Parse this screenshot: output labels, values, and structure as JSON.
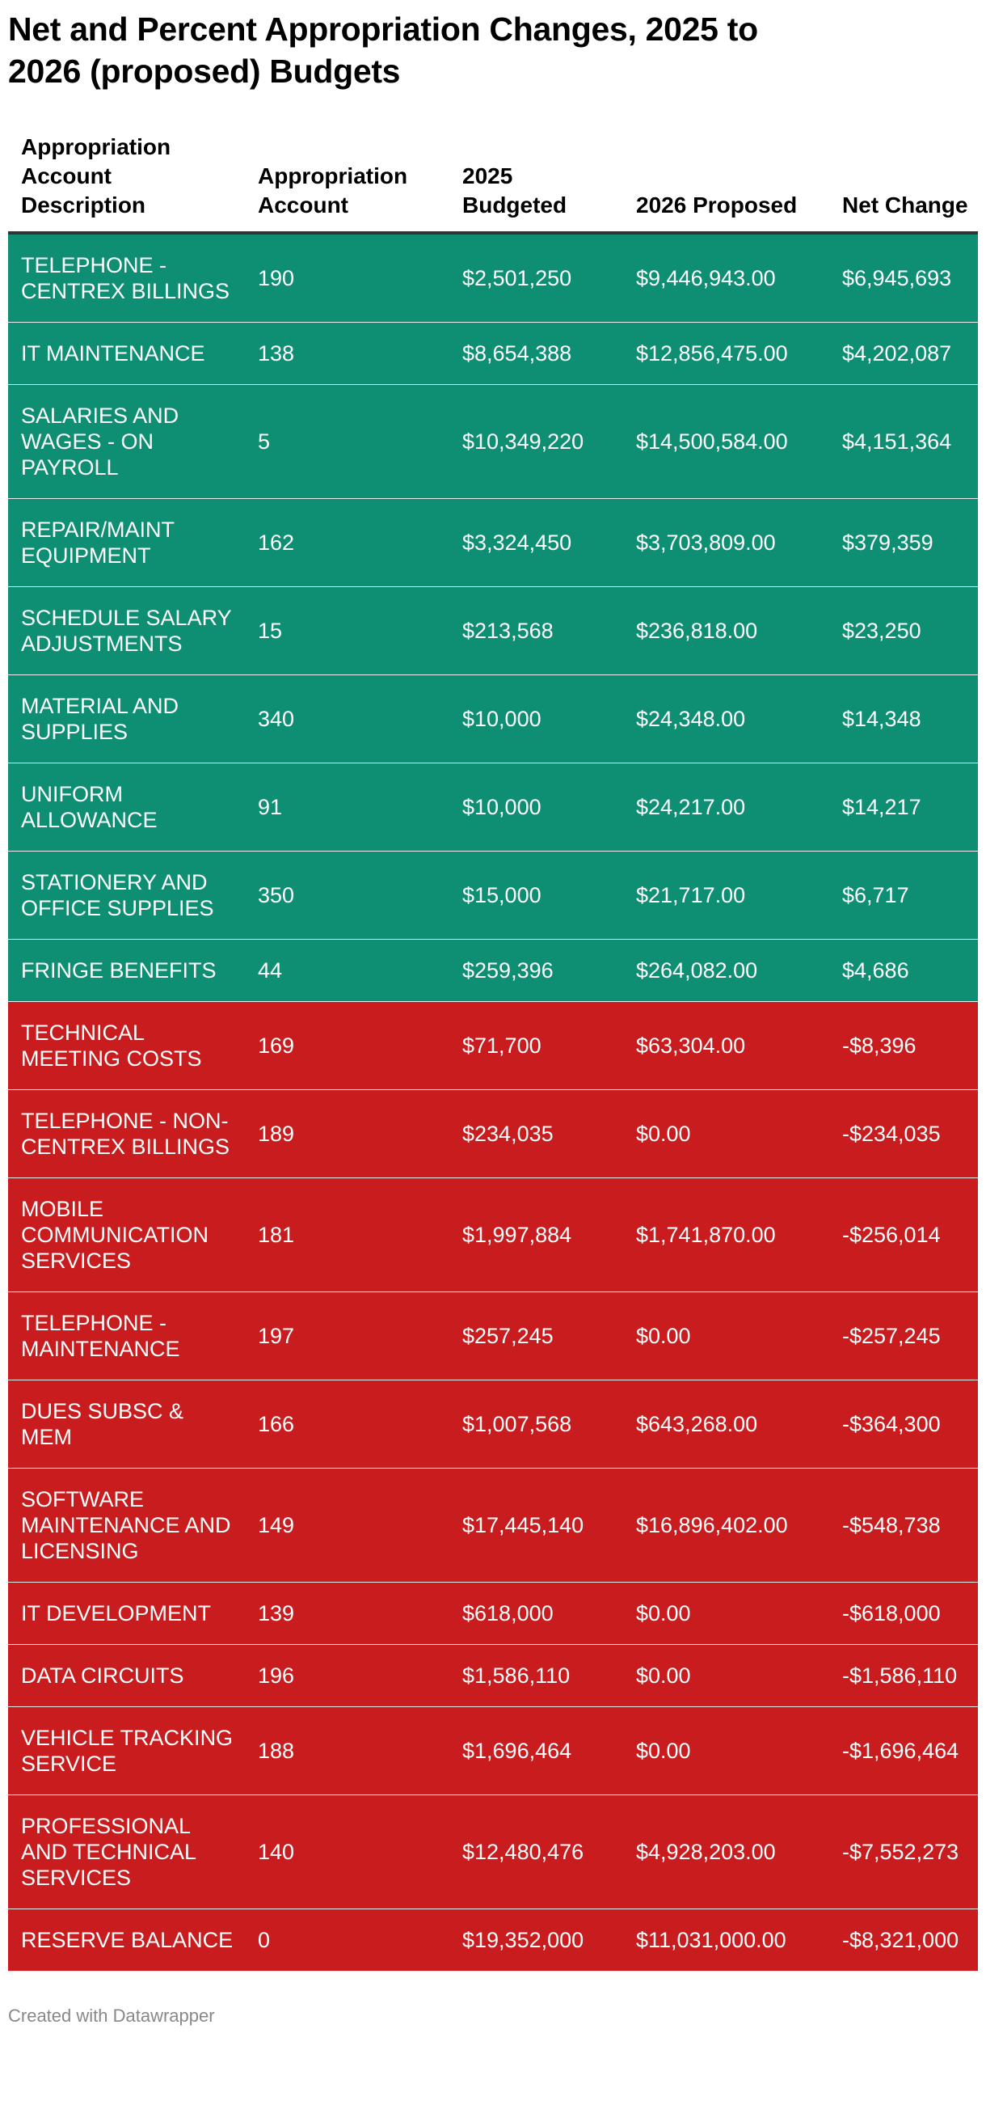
{
  "title": "Net and Percent Appropriation Changes, 2025 to 2026 (proposed) Budgets",
  "footer": "Created with Datawrapper",
  "colors": {
    "positive": "#0e8e73",
    "negative": "#c81c1e",
    "text_on_fill": "#ffffff"
  },
  "chart_data": {
    "type": "table",
    "title": "Net and Percent Appropriation Changes, 2025 to 2026 (proposed) Budgets",
    "columns": [
      "Appropriation Account Description",
      "Appropriation Account",
      "2025 Budgeted",
      "2026 Proposed",
      "Net Change"
    ],
    "rows": [
      [
        "TELEPHONE - CENTREX BILLINGS",
        "190",
        "$2,501,250",
        "$9,446,943.00",
        "$6,945,693"
      ],
      [
        "IT MAINTENANCE",
        "138",
        "$8,654,388",
        "$12,856,475.00",
        "$4,202,087"
      ],
      [
        "SALARIES AND WAGES - ON PAYROLL",
        "5",
        "$10,349,220",
        "$14,500,584.00",
        "$4,151,364"
      ],
      [
        "REPAIR/MAINT EQUIPMENT",
        "162",
        "$3,324,450",
        "$3,703,809.00",
        "$379,359"
      ],
      [
        "SCHEDULE SALARY ADJUSTMENTS",
        "15",
        "$213,568",
        "$236,818.00",
        "$23,250"
      ],
      [
        "MATERIAL AND SUPPLIES",
        "340",
        "$10,000",
        "$24,348.00",
        "$14,348"
      ],
      [
        "UNIFORM ALLOWANCE",
        "91",
        "$10,000",
        "$24,217.00",
        "$14,217"
      ],
      [
        "STATIONERY AND OFFICE SUPPLIES",
        "350",
        "$15,000",
        "$21,717.00",
        "$6,717"
      ],
      [
        "FRINGE BENEFITS",
        "44",
        "$259,396",
        "$264,082.00",
        "$4,686"
      ],
      [
        "TECHNICAL MEETING COSTS",
        "169",
        "$71,700",
        "$63,304.00",
        "-$8,396"
      ],
      [
        "TELEPHONE - NON-CENTREX BILLINGS",
        "189",
        "$234,035",
        "$0.00",
        "-$234,035"
      ],
      [
        "MOBILE COMMUNICATION SERVICES",
        "181",
        "$1,997,884",
        "$1,741,870.00",
        "-$256,014"
      ],
      [
        "TELEPHONE - MAINTENANCE",
        "197",
        "$257,245",
        "$0.00",
        "-$257,245"
      ],
      [
        "DUES SUBSC & MEM",
        "166",
        "$1,007,568",
        "$643,268.00",
        "-$364,300"
      ],
      [
        "SOFTWARE MAINTENANCE AND LICENSING",
        "149",
        "$17,445,140",
        "$16,896,402.00",
        "-$548,738"
      ],
      [
        "IT DEVELOPMENT",
        "139",
        "$618,000",
        "$0.00",
        "-$618,000"
      ],
      [
        "DATA CIRCUITS",
        "196",
        "$1,586,110",
        "$0.00",
        "-$1,586,110"
      ],
      [
        "VEHICLE TRACKING SERVICE",
        "188",
        "$1,696,464",
        "$0.00",
        "-$1,696,464"
      ],
      [
        "PROFESSIONAL AND TECHNICAL SERVICES",
        "140",
        "$12,480,476",
        "$4,928,203.00",
        "-$7,552,273"
      ],
      [
        "RESERVE BALANCE",
        "0",
        "$19,352,000",
        "$11,031,000.00",
        "-$8,321,000"
      ]
    ]
  }
}
